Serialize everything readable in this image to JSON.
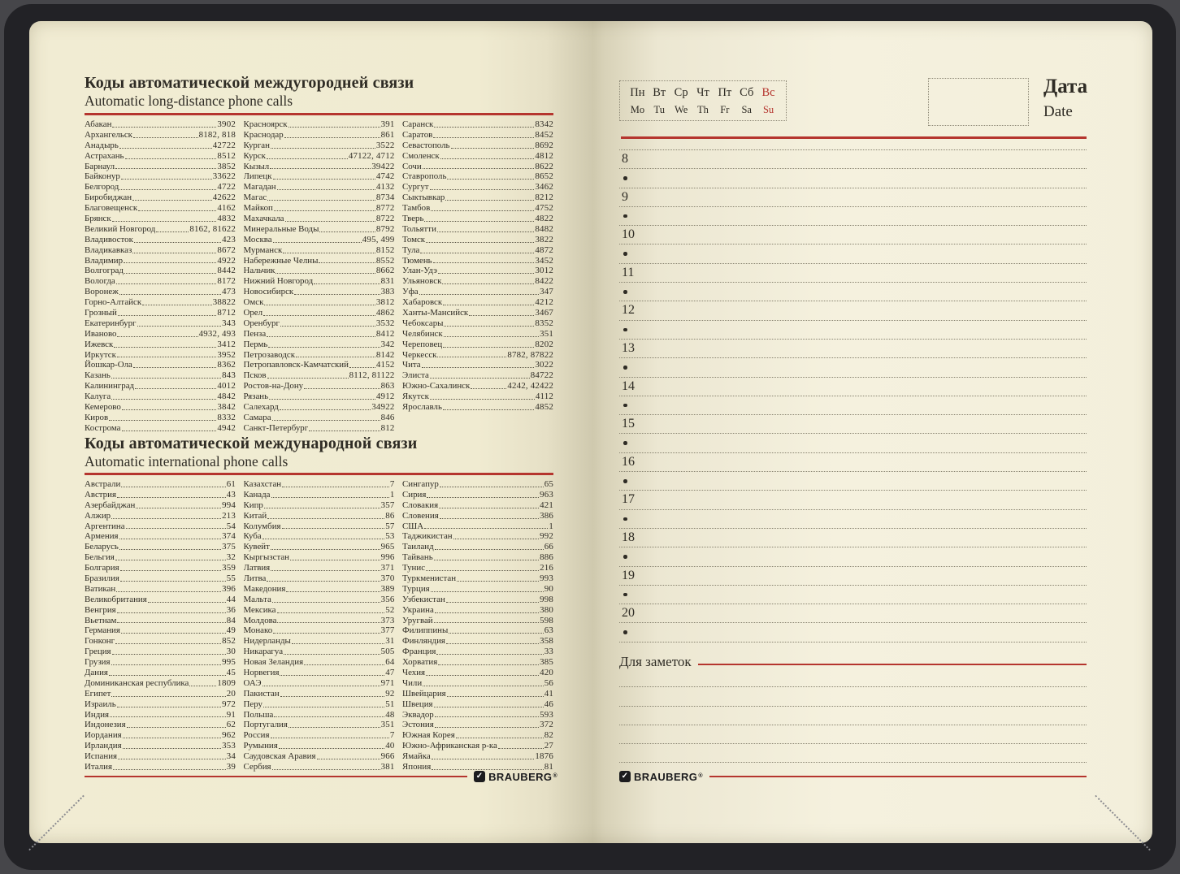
{
  "brand": {
    "name": "BRAUBERG",
    "reg": "®",
    "check": "✓"
  },
  "colors": {
    "accent_red": "#b5352e",
    "ink": "#2f2c25",
    "page_cream": "#f3eed7",
    "cover": "#222226"
  },
  "left_page": {
    "sections": [
      {
        "title_ru": "Коды автоматической междугородней связи",
        "title_en": "Automatic long-distance phone calls",
        "columns": [
          [
            [
              "Абакан",
              "3902"
            ],
            [
              "Архангельск",
              "8182, 818"
            ],
            [
              "Анадырь",
              "42722"
            ],
            [
              "Астрахань",
              "8512"
            ],
            [
              "Барнаул",
              "3852"
            ],
            [
              "Байконур",
              "33622"
            ],
            [
              "Белгород",
              "4722"
            ],
            [
              "Биробиджан",
              "42622"
            ],
            [
              "Благовещенск",
              "4162"
            ],
            [
              "Брянск",
              "4832"
            ],
            [
              "Великий Новгород",
              "8162, 81622"
            ],
            [
              "Владивосток",
              "423"
            ],
            [
              "Владикавказ",
              "8672"
            ],
            [
              "Владимир",
              "4922"
            ],
            [
              "Волгоград",
              "8442"
            ],
            [
              "Вологда",
              "8172"
            ],
            [
              "Воронеж",
              "473"
            ],
            [
              "Горно-Алтайск",
              "38822"
            ],
            [
              "Грозный",
              "8712"
            ],
            [
              "Екатеринбург",
              "343"
            ],
            [
              "Иваново",
              "4932, 493"
            ],
            [
              "Ижевск",
              "3412"
            ],
            [
              "Иркутск",
              "3952"
            ],
            [
              "Йошкар-Ола",
              "8362"
            ],
            [
              "Казань",
              "843"
            ],
            [
              "Калининград",
              "4012"
            ],
            [
              "Калуга",
              "4842"
            ],
            [
              "Кемерово",
              "3842"
            ],
            [
              "Киров",
              "8332"
            ],
            [
              "Кострома",
              "4942"
            ]
          ],
          [
            [
              "Красноярск",
              "391"
            ],
            [
              "Краснодар",
              "861"
            ],
            [
              "Курган",
              "3522"
            ],
            [
              "Курск",
              "47122, 4712"
            ],
            [
              "Кызыл",
              "39422"
            ],
            [
              "Липецк",
              "4742"
            ],
            [
              "Магадан",
              "4132"
            ],
            [
              "Магас",
              "8734"
            ],
            [
              "Майкоп",
              "8772"
            ],
            [
              "Махачкала",
              "8722"
            ],
            [
              "Минеральные Воды",
              "8792"
            ],
            [
              "Москва",
              "495, 499"
            ],
            [
              "Мурманск",
              "8152"
            ],
            [
              "Набережные Челны",
              "8552"
            ],
            [
              "Нальчик",
              "8662"
            ],
            [
              "Нижний Новгород",
              "831"
            ],
            [
              "Новосибирск",
              "383"
            ],
            [
              "Омск",
              "3812"
            ],
            [
              "Орел",
              "4862"
            ],
            [
              "Оренбург",
              "3532"
            ],
            [
              "Пенза",
              "8412"
            ],
            [
              "Пермь",
              "342"
            ],
            [
              "Петрозаводск",
              "8142"
            ],
            [
              "Петропавловск-Камчатский",
              "4152"
            ],
            [
              "Псков",
              "8112, 81122"
            ],
            [
              "Ростов-на-Дону",
              "863"
            ],
            [
              "Рязань",
              "4912"
            ],
            [
              "Салехард",
              "34922"
            ],
            [
              "Самара",
              "846"
            ],
            [
              "Санкт-Петербург",
              "812"
            ]
          ],
          [
            [
              "Саранск",
              "8342"
            ],
            [
              "Саратов",
              "8452"
            ],
            [
              "Севастополь",
              "8692"
            ],
            [
              "Смоленск",
              "4812"
            ],
            [
              "Сочи",
              "8622"
            ],
            [
              "Ставрополь",
              "8652"
            ],
            [
              "Сургут",
              "3462"
            ],
            [
              "Сыктывкар",
              "8212"
            ],
            [
              "Тамбов",
              "4752"
            ],
            [
              "Тверь",
              "4822"
            ],
            [
              "Тольятти",
              "8482"
            ],
            [
              "Томск",
              "3822"
            ],
            [
              "Тула",
              "4872"
            ],
            [
              "Тюмень",
              "3452"
            ],
            [
              "Улан-Удэ",
              "3012"
            ],
            [
              "Ульяновск",
              "8422"
            ],
            [
              "Уфа",
              "347"
            ],
            [
              "Хабаровск",
              "4212"
            ],
            [
              "Ханты-Мансийск",
              "3467"
            ],
            [
              "Чебоксары",
              "8352"
            ],
            [
              "Челябинск",
              "351"
            ],
            [
              "Череповец",
              "8202"
            ],
            [
              "Черкесск",
              "8782, 87822"
            ],
            [
              "Чита",
              "3022"
            ],
            [
              "Элиста",
              "84722"
            ],
            [
              "Южно-Сахалинск",
              "4242, 42422"
            ],
            [
              "Якутск",
              "4112"
            ],
            [
              "Ярославль",
              "4852"
            ]
          ]
        ]
      },
      {
        "title_ru": "Коды автоматической международной связи",
        "title_en": "Automatic international phone calls",
        "columns": [
          [
            [
              "Австрали",
              "61"
            ],
            [
              "Австрия",
              "43"
            ],
            [
              "Азербайджан",
              "994"
            ],
            [
              "Алжир",
              "213"
            ],
            [
              "Аргентина",
              "54"
            ],
            [
              "Армения",
              "374"
            ],
            [
              "Беларусь",
              "375"
            ],
            [
              "Бельгия",
              "32"
            ],
            [
              "Болгария",
              "359"
            ],
            [
              "Бразилия",
              "55"
            ],
            [
              "Ватикан",
              "396"
            ],
            [
              "Великобритания",
              "44"
            ],
            [
              "Венгрия",
              "36"
            ],
            [
              "Вьетнам",
              "84"
            ],
            [
              "Германия",
              "49"
            ],
            [
              "Гонконг",
              "852"
            ],
            [
              "Греция",
              "30"
            ],
            [
              "Грузия",
              "995"
            ],
            [
              "Дания",
              "45"
            ],
            [
              "Доминиканская республика",
              "1809"
            ],
            [
              "Египет",
              "20"
            ],
            [
              "Израиль",
              "972"
            ],
            [
              "Индия",
              "91"
            ],
            [
              "Индонезия",
              "62"
            ],
            [
              "Иордания",
              "962"
            ],
            [
              "Ирландия",
              "353"
            ],
            [
              "Испания",
              "34"
            ],
            [
              "Италия",
              "39"
            ]
          ],
          [
            [
              "Казахстан",
              "7"
            ],
            [
              "Канада",
              "1"
            ],
            [
              "Кипр",
              "357"
            ],
            [
              "Китай",
              "86"
            ],
            [
              "Колумбия",
              "57"
            ],
            [
              "Куба",
              "53"
            ],
            [
              "Кувейт",
              "965"
            ],
            [
              "Кыргызстан",
              "996"
            ],
            [
              "Латвия",
              "371"
            ],
            [
              "Литва",
              "370"
            ],
            [
              "Македония",
              "389"
            ],
            [
              "Мальта",
              "356"
            ],
            [
              "Мексика",
              "52"
            ],
            [
              "Молдова",
              "373"
            ],
            [
              "Монако",
              "377"
            ],
            [
              "Нидерланды",
              "31"
            ],
            [
              "Никарагуа",
              "505"
            ],
            [
              "Новая Зеландия",
              "64"
            ],
            [
              "Норвегия",
              "47"
            ],
            [
              "ОАЭ",
              "971"
            ],
            [
              "Пакистан",
              "92"
            ],
            [
              "Перу",
              "51"
            ],
            [
              "Польша",
              "48"
            ],
            [
              "Португалия",
              "351"
            ],
            [
              "Россия",
              "7"
            ],
            [
              "Румыния",
              "40"
            ],
            [
              "Саудовская Аравия",
              "966"
            ],
            [
              "Сербия",
              "381"
            ]
          ],
          [
            [
              "Сингапур",
              "65"
            ],
            [
              "Сирия",
              "963"
            ],
            [
              "Словакия",
              "421"
            ],
            [
              "Словения",
              "386"
            ],
            [
              "США",
              "1"
            ],
            [
              "Таджикистан",
              "992"
            ],
            [
              "Таиланд",
              "66"
            ],
            [
              "Тайвань",
              "886"
            ],
            [
              "Тунис",
              "216"
            ],
            [
              "Туркменистан",
              "993"
            ],
            [
              "Турция",
              "90"
            ],
            [
              "Узбекистан",
              "998"
            ],
            [
              "Украина",
              "380"
            ],
            [
              "Уругвай",
              "598"
            ],
            [
              "Филиппины",
              "63"
            ],
            [
              "Финляндия",
              "358"
            ],
            [
              "Франция",
              "33"
            ],
            [
              "Хорватия",
              "385"
            ],
            [
              "Чехия",
              "420"
            ],
            [
              "Чили",
              "56"
            ],
            [
              "Швейцария",
              "41"
            ],
            [
              "Швеция",
              "46"
            ],
            [
              "Эквадор",
              "593"
            ],
            [
              "Эстония",
              "372"
            ],
            [
              "Южная Корея",
              "82"
            ],
            [
              "Южно-Африканская р-ка",
              "27"
            ],
            [
              "Ямайка",
              "1876"
            ],
            [
              "Япония",
              "81"
            ]
          ]
        ]
      }
    ]
  },
  "right_page": {
    "weekdays_ru": [
      "Пн",
      "Вт",
      "Ср",
      "Чт",
      "Пт",
      "Сб",
      "Вс"
    ],
    "weekdays_en": [
      "Mo",
      "Tu",
      "We",
      "Th",
      "Fr",
      "Sa",
      "Su"
    ],
    "date_title": "Дата",
    "date_subtitle": "Date",
    "hours": [
      "8",
      "9",
      "10",
      "11",
      "12",
      "13",
      "14",
      "15",
      "16",
      "17",
      "18",
      "19",
      "20"
    ],
    "notes_label": "Для заметок",
    "notes_lines_count": 5
  }
}
